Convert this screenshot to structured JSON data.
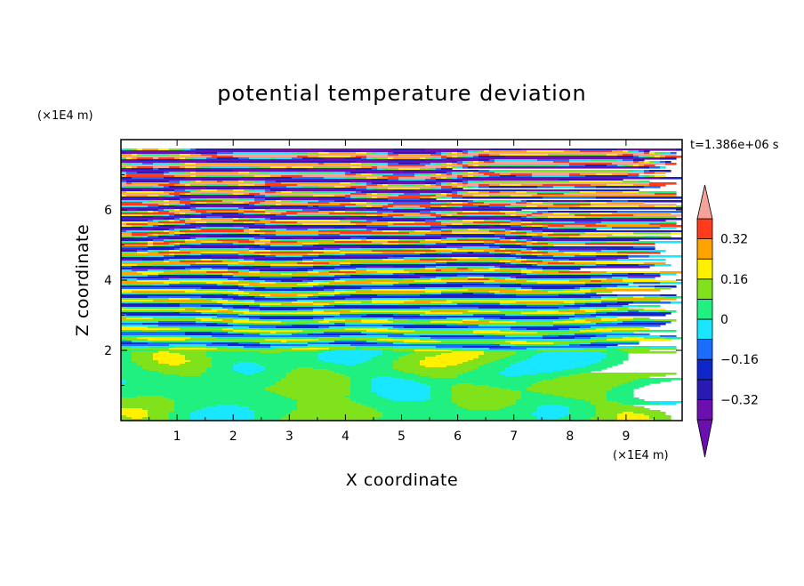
{
  "chart_data": {
    "type": "heatmap",
    "title": "potential temperature deviation",
    "xlabel": "X coordinate",
    "ylabel": "Z coordinate",
    "x_unit": "(×1E4 m)",
    "y_unit": "(×1E4 m)",
    "time_label": "t=1.386e+06 s",
    "xlim": [
      0,
      10
    ],
    "ylim": [
      0,
      8
    ],
    "x_ticks": [
      "1",
      "2",
      "3",
      "4",
      "5",
      "6",
      "7",
      "8",
      "9"
    ],
    "y_ticks": [
      "2",
      "4",
      "6"
    ],
    "x_tick_values": [
      1,
      2,
      3,
      4,
      5,
      6,
      7,
      8,
      9
    ],
    "y_tick_values": [
      2,
      4,
      6
    ],
    "colorbar": {
      "levels": [
        -0.4,
        -0.32,
        -0.24,
        -0.16,
        -0.08,
        0,
        0.08,
        0.16,
        0.24,
        0.32,
        0.4
      ],
      "labels": [
        "0.32",
        "0.16",
        "0",
        "−0.16",
        "−0.32"
      ],
      "label_values": [
        0.32,
        0.16,
        0,
        -0.16,
        -0.32
      ],
      "colors": [
        "#6b0fae",
        "#2a1ab4",
        "#0f27c9",
        "#1b6cff",
        "#19e6ff",
        "#1ff07f",
        "#7fe21a",
        "#fff000",
        "#ffa300",
        "#ff3b1c",
        "#f5a39a"
      ],
      "extend": "both"
    },
    "regions": [
      {
        "z_range": [
          0,
          1.95
        ],
        "description": "mixed layer with cells of values between -0.08 and 0.08"
      },
      {
        "z_range": [
          1.95,
          8
        ],
        "description": "layered band of alternating positive and negative anomalies, amplitude increasing with height"
      }
    ]
  },
  "colors": {
    "background": "#ffffff",
    "frame": "#000000"
  }
}
